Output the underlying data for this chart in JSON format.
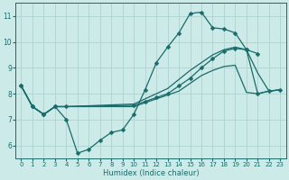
{
  "xlabel": "Humidex (Indice chaleur)",
  "bg_color": "#cceae8",
  "grid_color": "#aed4d0",
  "line_color": "#1a6b6b",
  "xlim": [
    -0.5,
    23.5
  ],
  "ylim": [
    5.5,
    11.5
  ],
  "xticks": [
    0,
    1,
    2,
    3,
    4,
    5,
    6,
    7,
    8,
    9,
    10,
    11,
    12,
    13,
    14,
    15,
    16,
    17,
    18,
    19,
    20,
    21,
    22,
    23
  ],
  "yticks": [
    6,
    7,
    8,
    9,
    10,
    11
  ],
  "series": [
    {
      "x": [
        0,
        1,
        2,
        3,
        4,
        5,
        6,
        7,
        8,
        9,
        10,
        11,
        12,
        13,
        14,
        15,
        16,
        17,
        18,
        19,
        20,
        21
      ],
      "y": [
        8.3,
        7.5,
        7.2,
        7.5,
        7.0,
        5.7,
        5.85,
        6.2,
        6.5,
        6.6,
        7.2,
        8.15,
        9.2,
        9.8,
        10.35,
        11.1,
        11.15,
        10.55,
        10.5,
        10.35,
        9.7,
        9.55
      ],
      "marker": "D",
      "markersize": 2.5,
      "lw": 0.9
    },
    {
      "x": [
        0,
        1,
        2,
        3,
        4,
        10,
        11,
        12,
        13,
        14,
        15,
        16,
        17,
        18,
        19,
        20,
        21,
        22,
        23
      ],
      "y": [
        8.3,
        7.5,
        7.2,
        7.5,
        7.5,
        7.6,
        7.8,
        8.0,
        8.2,
        8.55,
        8.9,
        9.2,
        9.5,
        9.7,
        9.8,
        9.7,
        8.8,
        8.1,
        8.15
      ],
      "marker": null,
      "markersize": 0,
      "lw": 0.9
    },
    {
      "x": [
        0,
        1,
        2,
        3,
        4,
        10,
        11,
        12,
        13,
        14,
        15,
        16,
        17,
        18,
        19,
        20,
        21,
        22,
        23
      ],
      "y": [
        8.3,
        7.5,
        7.2,
        7.5,
        7.5,
        7.5,
        7.65,
        7.8,
        7.95,
        8.1,
        8.4,
        8.7,
        8.9,
        9.05,
        9.1,
        8.05,
        8.0,
        8.1,
        8.15
      ],
      "marker": null,
      "markersize": 0,
      "lw": 0.9
    },
    {
      "x": [
        0,
        1,
        2,
        3,
        4,
        10,
        11,
        12,
        13,
        14,
        15,
        16,
        17,
        18,
        19,
        20,
        21,
        22,
        23
      ],
      "y": [
        8.3,
        7.5,
        7.2,
        7.5,
        7.5,
        7.55,
        7.7,
        7.85,
        8.0,
        8.3,
        8.6,
        9.0,
        9.35,
        9.65,
        9.75,
        9.7,
        8.0,
        8.1,
        8.15
      ],
      "marker": "D",
      "markersize": 2.5,
      "lw": 0.9
    }
  ]
}
